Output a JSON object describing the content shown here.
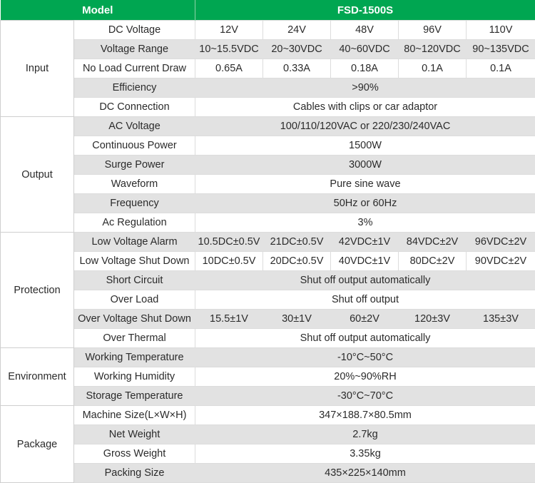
{
  "header": {
    "col1": "Model",
    "col2": "FSD-1500S"
  },
  "colors": {
    "header_green": "#00a651",
    "row_gray": "#e2e2e2"
  },
  "groups": [
    {
      "name": "Input",
      "rows": [
        {
          "label": "DC Voltage",
          "values": [
            "12V",
            "24V",
            "48V",
            "96V",
            "110V"
          ]
        },
        {
          "label": "Voltage Range",
          "values": [
            "10~15.5VDC",
            "20~30VDC",
            "40~60VDC",
            "80~120VDC",
            "90~135VDC"
          ]
        },
        {
          "label": "No Load Current Draw",
          "values": [
            "0.65A",
            "0.33A",
            "0.18A",
            "0.1A",
            "0.1A"
          ]
        },
        {
          "label": "Efficiency",
          "values": [
            ">90%"
          ]
        },
        {
          "label": "DC Connection",
          "values": [
            "Cables with clips or car adaptor"
          ]
        }
      ]
    },
    {
      "name": "Output",
      "rows": [
        {
          "label": "AC Voltage",
          "values": [
            "100/110/120VAC or 220/230/240VAC"
          ]
        },
        {
          "label": "Continuous Power",
          "values": [
            "1500W"
          ]
        },
        {
          "label": "Surge Power",
          "values": [
            "3000W"
          ]
        },
        {
          "label": "Waveform",
          "values": [
            "Pure sine wave"
          ]
        },
        {
          "label": "Frequency",
          "values": [
            "50Hz or 60Hz"
          ]
        },
        {
          "label": "Ac Regulation",
          "values": [
            "3%"
          ]
        }
      ]
    },
    {
      "name": "Protection",
      "rows": [
        {
          "label": "Low Voltage Alarm",
          "values": [
            "10.5DC±0.5V",
            "21DC±0.5V",
            "42VDC±1V",
            "84VDC±2V",
            "96VDC±2V"
          ]
        },
        {
          "label": "Low Voltage Shut Down",
          "values": [
            "10DC±0.5V",
            "20DC±0.5V",
            "40VDC±1V",
            "80DC±2V",
            "90VDC±2V"
          ]
        },
        {
          "label": "Short Circuit",
          "values": [
            "Shut off output automatically"
          ]
        },
        {
          "label": "Over Load",
          "values": [
            "Shut off output"
          ]
        },
        {
          "label": "Over Voltage Shut Down",
          "values": [
            "15.5±1V",
            "30±1V",
            "60±2V",
            "120±3V",
            "135±3V"
          ]
        },
        {
          "label": "Over Thermal",
          "values": [
            "Shut off output automatically"
          ]
        }
      ]
    },
    {
      "name": "Environment",
      "rows": [
        {
          "label": "Working Temperature",
          "values": [
            "-10°C~50°C"
          ]
        },
        {
          "label": "Working Humidity",
          "values": [
            "20%~90%RH"
          ]
        },
        {
          "label": "Storage Temperature",
          "values": [
            "-30°C~70°C"
          ]
        }
      ]
    },
    {
      "name": "Package",
      "rows": [
        {
          "label": "Machine Size(L×W×H)",
          "values": [
            "347×188.7×80.5mm"
          ]
        },
        {
          "label": "Net Weight",
          "values": [
            "2.7kg"
          ]
        },
        {
          "label": "Gross Weight",
          "values": [
            "3.35kg"
          ]
        },
        {
          "label": "Packing Size",
          "values": [
            "435×225×140mm"
          ]
        }
      ]
    }
  ]
}
